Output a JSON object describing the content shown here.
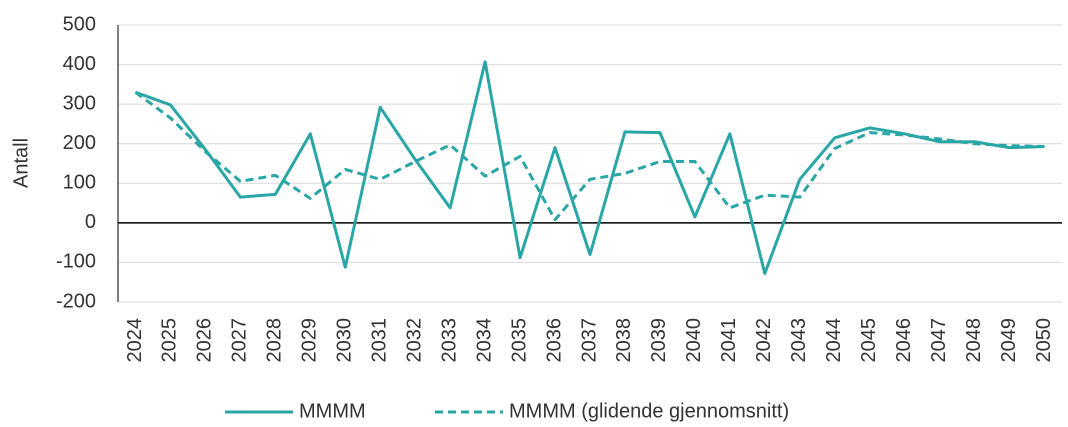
{
  "chart_data": {
    "type": "line",
    "y_label": "Antall",
    "categories": [
      "2024",
      "2025",
      "2026",
      "2027",
      "2028",
      "2029",
      "2030",
      "2031",
      "2032",
      "2033",
      "2034",
      "2035",
      "2036",
      "2037",
      "2038",
      "2039",
      "2040",
      "2041",
      "2042",
      "2043",
      "2044",
      "2045",
      "2046",
      "2047",
      "2048",
      "2049",
      "2050"
    ],
    "series": [
      {
        "name": "MMMM",
        "color": "#2aa6a6",
        "line_style": "solid",
        "values": [
          330,
          298,
          185,
          65,
          72,
          225,
          -112,
          292,
          160,
          38,
          407,
          -88,
          190,
          -80,
          230,
          228,
          15,
          225,
          -128,
          110,
          215,
          240,
          225,
          205,
          205,
          190,
          193
        ]
      },
      {
        "name": "MMMM (glidende gjennomsnitt)",
        "color": "#2aa6a6",
        "line_style": "dashed",
        "values": [
          330,
          265,
          180,
          105,
          120,
          62,
          135,
          110,
          155,
          197,
          118,
          168,
          8,
          110,
          125,
          155,
          155,
          38,
          70,
          65,
          188,
          228,
          222,
          212,
          200,
          195,
          193
        ]
      }
    ],
    "ylim": [
      -200,
      500
    ],
    "yticks": [
      -200,
      -100,
      0,
      100,
      200,
      300,
      400,
      500
    ],
    "grid": true,
    "legend": "bottom"
  }
}
